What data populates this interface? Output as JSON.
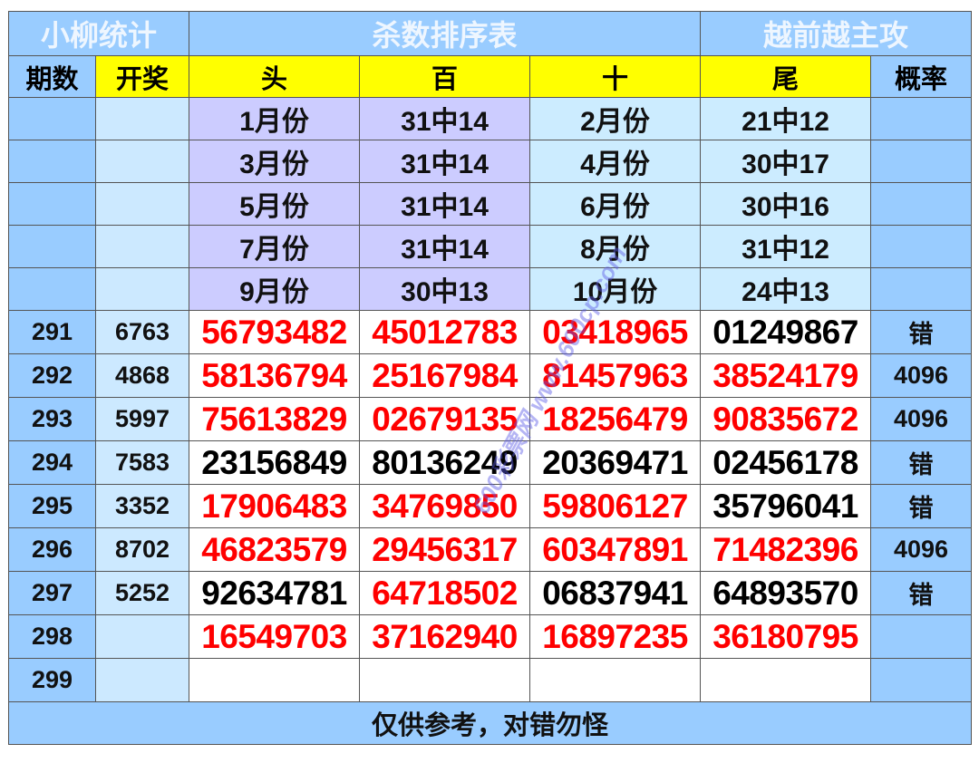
{
  "header": {
    "left": "小柳统计",
    "center": "杀数排序表",
    "right": "越前越主攻"
  },
  "columns": [
    "期数",
    "开奖",
    "头",
    "百",
    "十",
    "尾",
    "概率"
  ],
  "monthly": [
    {
      "m1": "1月份",
      "v1": "31中14",
      "m2": "2月份",
      "v2": "21中12"
    },
    {
      "m1": "3月份",
      "v1": "31中14",
      "m2": "4月份",
      "v2": "30中17"
    },
    {
      "m1": "5月份",
      "v1": "31中14",
      "m2": "6月份",
      "v2": "30中16"
    },
    {
      "m1": "7月份",
      "v1": "31中14",
      "m2": "8月份",
      "v2": "31中12"
    },
    {
      "m1": "9月份",
      "v1": "30中13",
      "m2": "10月份",
      "v2": "24中13"
    }
  ],
  "rows": [
    {
      "period": "291",
      "draw": "6763",
      "cells": [
        {
          "v": "56793482",
          "c": "red"
        },
        {
          "v": "45012783",
          "c": "red"
        },
        {
          "v": "03418965",
          "c": "red"
        },
        {
          "v": "01249867",
          "c": "black"
        }
      ],
      "rate": "错"
    },
    {
      "period": "292",
      "draw": "4868",
      "cells": [
        {
          "v": "58136794",
          "c": "red"
        },
        {
          "v": "25167984",
          "c": "red"
        },
        {
          "v": "81457963",
          "c": "red"
        },
        {
          "v": "38524179",
          "c": "red"
        }
      ],
      "rate": "4096"
    },
    {
      "period": "293",
      "draw": "5997",
      "cells": [
        {
          "v": "75613829",
          "c": "red"
        },
        {
          "v": "02679135",
          "c": "red"
        },
        {
          "v": "18256479",
          "c": "red"
        },
        {
          "v": "90835672",
          "c": "red"
        }
      ],
      "rate": "4096"
    },
    {
      "period": "294",
      "draw": "7583",
      "cells": [
        {
          "v": "23156849",
          "c": "black"
        },
        {
          "v": "80136249",
          "c": "black"
        },
        {
          "v": "20369471",
          "c": "black"
        },
        {
          "v": "02456178",
          "c": "black"
        }
      ],
      "rate": "错"
    },
    {
      "period": "295",
      "draw": "3352",
      "cells": [
        {
          "v": "17906483",
          "c": "red"
        },
        {
          "v": "34769850",
          "c": "red"
        },
        {
          "v": "59806127",
          "c": "red"
        },
        {
          "v": "35796041",
          "c": "black"
        }
      ],
      "rate": "错"
    },
    {
      "period": "296",
      "draw": "8702",
      "cells": [
        {
          "v": "46823579",
          "c": "red"
        },
        {
          "v": "29456317",
          "c": "red"
        },
        {
          "v": "60347891",
          "c": "red"
        },
        {
          "v": "71482396",
          "c": "red"
        }
      ],
      "rate": "4096"
    },
    {
      "period": "297",
      "draw": "5252",
      "cells": [
        {
          "v": "92634781",
          "c": "black"
        },
        {
          "v": "64718502",
          "c": "red"
        },
        {
          "v": "06837941",
          "c": "black"
        },
        {
          "v": "64893570",
          "c": "black"
        }
      ],
      "rate": "错"
    },
    {
      "period": "298",
      "draw": "",
      "cells": [
        {
          "v": "16549703",
          "c": "red"
        },
        {
          "v": "37162940",
          "c": "red"
        },
        {
          "v": "16897235",
          "c": "red"
        },
        {
          "v": "36180795",
          "c": "red"
        }
      ],
      "rate": ""
    },
    {
      "period": "299",
      "draw": "",
      "cells": [
        {
          "v": "",
          "c": "black"
        },
        {
          "v": "",
          "c": "black"
        },
        {
          "v": "",
          "c": "black"
        },
        {
          "v": "",
          "c": "black"
        }
      ],
      "rate": ""
    }
  ],
  "footer": "仅供参考，对错勿怪",
  "watermark": "600彩票网 www.600cp.com",
  "colors": {
    "blue": "#99ccff",
    "light_blue": "#cce9ff",
    "lavender": "#ccccff",
    "cyan": "#ccecff",
    "yellow": "#ffff00",
    "hit": "#ff0000"
  }
}
